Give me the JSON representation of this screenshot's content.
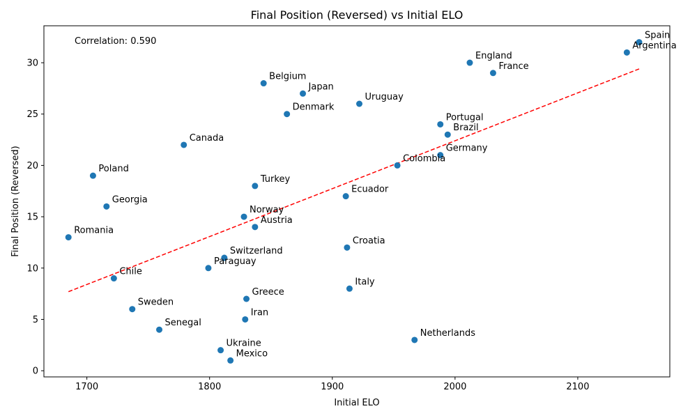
{
  "chart_data": {
    "type": "scatter",
    "title": "Final Position (Reversed) vs Initial ELO",
    "xlabel": "Initial ELO",
    "ylabel": "Final Position (Reversed)",
    "xlim": [
      1665,
      2175
    ],
    "ylim": [
      -0.6,
      33.6
    ],
    "xticks": [
      1700,
      1800,
      1900,
      2000,
      2100
    ],
    "yticks": [
      0,
      5,
      10,
      15,
      20,
      25,
      30
    ],
    "grid": false,
    "point_color": "#1f77b4",
    "trendline": {
      "color": "#ff0000",
      "style": "dashed",
      "x": [
        1685,
        2150
      ],
      "y": [
        7.7,
        29.4
      ]
    },
    "annotation": "Correlation: 0.590",
    "points": [
      {
        "label": "Spain",
        "x": 2150,
        "y": 32
      },
      {
        "label": "Argentina",
        "x": 2140,
        "y": 31
      },
      {
        "label": "England",
        "x": 2012,
        "y": 30
      },
      {
        "label": "France",
        "x": 2031,
        "y": 29
      },
      {
        "label": "Belgium",
        "x": 1844,
        "y": 28
      },
      {
        "label": "Japan",
        "x": 1876,
        "y": 27
      },
      {
        "label": "Uruguay",
        "x": 1922,
        "y": 26
      },
      {
        "label": "Denmark",
        "x": 1863,
        "y": 25
      },
      {
        "label": "Portugal",
        "x": 1988,
        "y": 24
      },
      {
        "label": "Brazil",
        "x": 1994,
        "y": 23
      },
      {
        "label": "Canada",
        "x": 1779,
        "y": 22
      },
      {
        "label": "Germany",
        "x": 1988,
        "y": 21
      },
      {
        "label": "Colombia",
        "x": 1953,
        "y": 20
      },
      {
        "label": "Poland",
        "x": 1705,
        "y": 19
      },
      {
        "label": "Turkey",
        "x": 1837,
        "y": 18
      },
      {
        "label": "Ecuador",
        "x": 1911,
        "y": 17
      },
      {
        "label": "Georgia",
        "x": 1716,
        "y": 16
      },
      {
        "label": "Norway",
        "x": 1828,
        "y": 15
      },
      {
        "label": "Austria",
        "x": 1837,
        "y": 14
      },
      {
        "label": "Romania",
        "x": 1685,
        "y": 13
      },
      {
        "label": "Croatia",
        "x": 1912,
        "y": 12
      },
      {
        "label": "Switzerland",
        "x": 1812,
        "y": 11
      },
      {
        "label": "Paraguay",
        "x": 1799,
        "y": 10
      },
      {
        "label": "Chile",
        "x": 1722,
        "y": 9
      },
      {
        "label": "Italy",
        "x": 1914,
        "y": 8
      },
      {
        "label": "Greece",
        "x": 1830,
        "y": 7
      },
      {
        "label": "Sweden",
        "x": 1737,
        "y": 6
      },
      {
        "label": "Iran",
        "x": 1829,
        "y": 5
      },
      {
        "label": "Senegal",
        "x": 1759,
        "y": 4
      },
      {
        "label": "Netherlands",
        "x": 1967,
        "y": 3
      },
      {
        "label": "Ukraine",
        "x": 1809,
        "y": 2
      },
      {
        "label": "Mexico",
        "x": 1817,
        "y": 1
      }
    ]
  }
}
